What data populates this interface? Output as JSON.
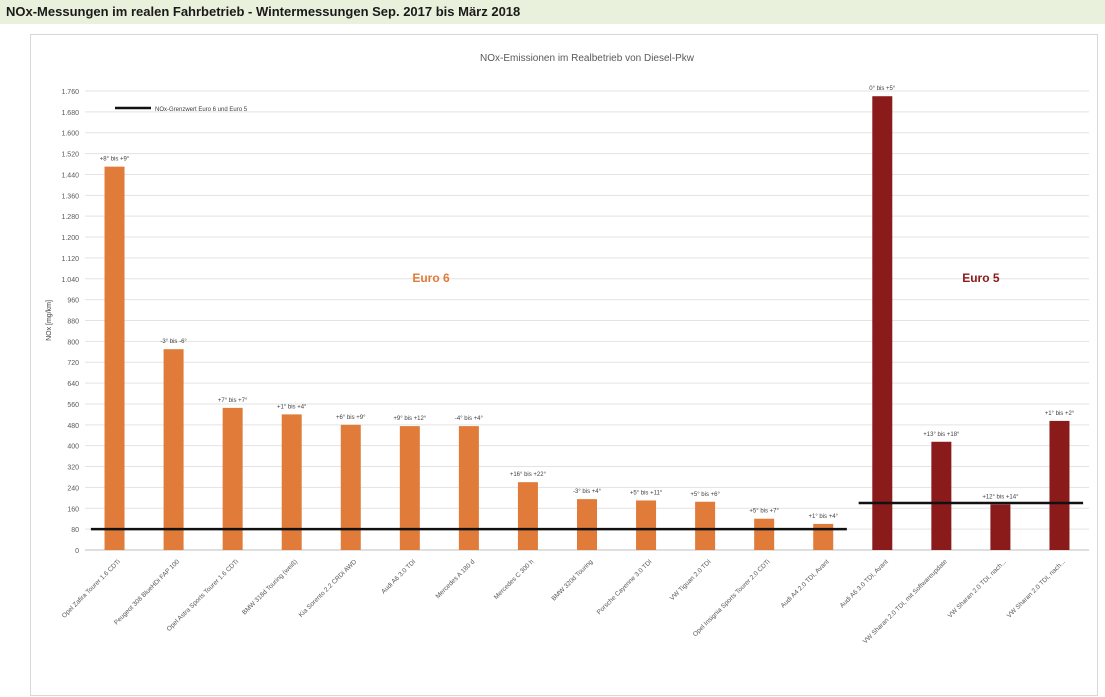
{
  "header": {
    "title": "NOx-Messungen im realen Fahrbetrieb - Wintermessungen Sep. 2017 bis März 2018"
  },
  "chart_data": {
    "type": "bar",
    "title": "NOx-Emissionen im Realbetrieb von Diesel-Pkw",
    "xlabel": "",
    "ylabel": "NOx [mg/km]",
    "ylim": [
      0,
      1760
    ],
    "yticks": [
      0,
      80,
      160,
      240,
      320,
      400,
      480,
      560,
      640,
      720,
      800,
      880,
      960,
      1040,
      1120,
      1200,
      1280,
      1360,
      1440,
      1520,
      1600,
      1680,
      1760
    ],
    "ytick_labels": [
      "0",
      "80",
      "160",
      "240",
      "320",
      "400",
      "480",
      "560",
      "640",
      "720",
      "800",
      "880",
      "960",
      "1.040",
      "1.120",
      "1.200",
      "1.280",
      "1.360",
      "1.440",
      "1.520",
      "1.600",
      "1.680",
      "1.760"
    ],
    "grid": true,
    "categories": [
      "Opel Zafira Tourer 1.6 CDTi",
      "Peugeot 308 BlueHDi FAP 100",
      "Opel Astra Sports Tourer 1.6 CDTi",
      "BMW 318d Touring (weiß)",
      "Kia Sorento 2.2 CRDi AWD",
      "Audi A6 3.0 TDI",
      "Mercedes A 180 d",
      "Mercedes C 300 h",
      "BMW 320d Touring",
      "Porsche Cayenne 3.0 TDI",
      "VW Tiguan 2.0 TDI",
      "Opel Insignia Sports Tourer 2.0 CDTi",
      "Audi A4 2.0 TDI, Avant",
      "Audi A6 3.0 TDI, Avant",
      "VW Sharan 2.0 TDI, mit Softwareupdate",
      "VW Sharan 2.0 TDI, nach...",
      "VW Sharan 2.0 TDI, nach..."
    ],
    "values": [
      1470,
      770,
      545,
      520,
      480,
      475,
      475,
      260,
      195,
      190,
      185,
      120,
      100,
      1740,
      415,
      175,
      495
    ],
    "point_labels": [
      "+8° bis +9°",
      "-3° bis -6°",
      "+7° bis +7°",
      "+1° bis +4°",
      "+6° bis +9°",
      "+9° bis +12°",
      "-4° bis +4°",
      "+16° bis +22°",
      "-3° bis +4°",
      "+5° bis +11°",
      "+5° bis +6°",
      "+5° bis +7°",
      "+1° bis +4°",
      "0° bis +5°",
      "+13° bis +18°",
      "+12° bis +14°",
      "+1° bis +2°"
    ],
    "groups": [
      {
        "label": "Euro 6",
        "color": "#e07b39",
        "start": 0,
        "end": 12
      },
      {
        "label": "Euro 5",
        "color": "#8b1a1a",
        "start": 13,
        "end": 16
      }
    ],
    "limit_lines": [
      {
        "name": "NOx-Grenzwert Euro 6 und Euro 5",
        "value": 80,
        "start": 0,
        "end": 12
      },
      {
        "value": 180,
        "start": 13,
        "end": 16
      }
    ],
    "legend": {
      "position": "top-left",
      "label": "NOx-Grenzwert Euro 6 und Euro 5"
    }
  }
}
